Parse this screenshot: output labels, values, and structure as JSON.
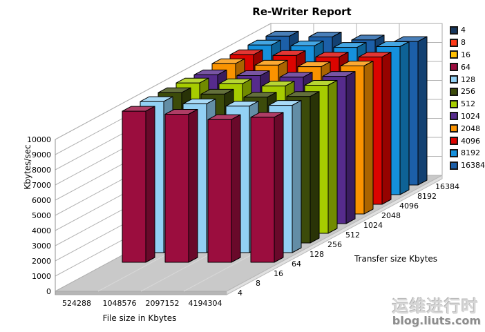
{
  "title": "Re-Writer Report",
  "watermark": {
    "line1": "运维进行时",
    "line2": "blog.liuts.com"
  },
  "chart_data": {
    "type": "bar",
    "subtype": "3d-column",
    "title": "Re-Writer Report",
    "xlabel": "File size in Kbytes",
    "depth_label": "Transfer size Kbytes",
    "ylabel": "Kbytes/sec",
    "ylim": [
      0,
      10000
    ],
    "ytick_step": 1000,
    "grid": true,
    "legend_position": "right",
    "categories": [
      "524288",
      "1048576",
      "2097152",
      "4194304"
    ],
    "series": [
      {
        "name": "4",
        "color": "#17375D",
        "values": [
          null,
          null,
          null,
          null
        ]
      },
      {
        "name": "8",
        "color": "#FF3A19",
        "values": [
          null,
          null,
          null,
          null
        ]
      },
      {
        "name": "16",
        "color": "#FFBF00",
        "values": [
          null,
          null,
          null,
          null
        ]
      },
      {
        "name": "64",
        "color": "#9B0D3E",
        "values": [
          9950,
          9750,
          9400,
          9550
        ]
      },
      {
        "name": "128",
        "color": "#92D1F4",
        "values": [
          9950,
          9800,
          9650,
          9700
        ]
      },
      {
        "name": "256",
        "color": "#3C4B0A",
        "values": [
          9900,
          9800,
          9600,
          9650
        ]
      },
      {
        "name": "512",
        "color": "#A6CC00",
        "values": [
          9900,
          9850,
          9700,
          9750
        ]
      },
      {
        "name": "1024",
        "color": "#562B8C",
        "values": [
          9800,
          9750,
          9650,
          9700
        ]
      },
      {
        "name": "2048",
        "color": "#FA9300",
        "values": [
          9900,
          9800,
          9700,
          9750
        ]
      },
      {
        "name": "4096",
        "color": "#DC0400",
        "values": [
          9850,
          9800,
          9700,
          9700
        ]
      },
      {
        "name": "8192",
        "color": "#1590DC",
        "values": [
          9850,
          9800,
          9700,
          9750
        ]
      },
      {
        "name": "16384",
        "color": "#1C5FA8",
        "values": [
          9800,
          9750,
          9550,
          9450
        ]
      }
    ]
  }
}
